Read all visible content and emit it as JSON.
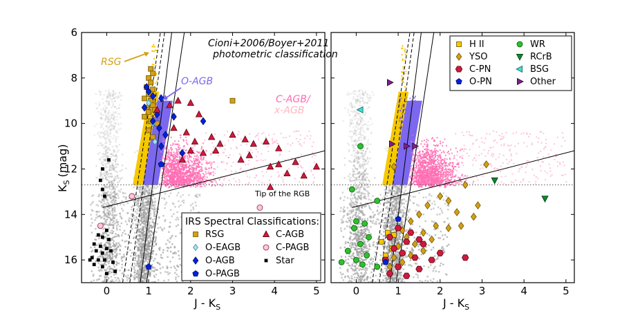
{
  "colors": {
    "rsg_band": "#f5c800",
    "oagb_band": "#7b68ee",
    "cagb_cloud": "#ff6eb4",
    "xagb_cloud": "#ffb6cf",
    "rsg_label": "#d4a017",
    "oagb_label": "#7b68ee",
    "cagb_label": "#ff69b4",
    "xagb_label": "#ffb6c1",
    "background_cloud": "#9a9a9a"
  },
  "chart_data": [
    {
      "type": "scatter",
      "panel": "left",
      "xlabel": "J - K",
      "xlabel_sub": "S",
      "ylabel": "K",
      "ylabel_sub": "S",
      "ylabel_unit": "(mag)",
      "xlim": [
        -0.6,
        5.2
      ],
      "ylim": [
        17,
        6
      ],
      "xticks": [
        "0",
        "1",
        "2",
        "3",
        "4",
        "5"
      ],
      "yticks": [
        "6",
        "8",
        "10",
        "12",
        "14",
        "16"
      ],
      "title_lines": [
        "Cioni+2006/Boyer+2011",
        "photometric classification"
      ],
      "region_labels": {
        "rsg": "RSG",
        "oagb": "O-AGB",
        "cagb": "C-AGB/",
        "xagb": "x-AGB"
      },
      "trgb_label": "Tip of the RGB",
      "trgb_k": 12.7,
      "legend_title": "IRS Spectral Classifications:",
      "legend": [
        {
          "key": "rsg",
          "label": "RSG"
        },
        {
          "key": "oeagb",
          "label": "O-EAGB"
        },
        {
          "key": "oagb",
          "label": "O-AGB"
        },
        {
          "key": "opagb",
          "label": "O-PAGB"
        },
        {
          "key": "cagb",
          "label": "C-AGB"
        },
        {
          "key": "cpagb",
          "label": "C-PAGB"
        },
        {
          "key": "star",
          "label": "Star"
        }
      ],
      "series": [
        {
          "key": "rsg",
          "name": "RSG",
          "points": [
            [
              1.05,
              7.6
            ],
            [
              1.1,
              7.8
            ],
            [
              1.0,
              8.0
            ],
            [
              1.05,
              8.2
            ],
            [
              0.95,
              8.4
            ],
            [
              1.1,
              8.5
            ],
            [
              1.0,
              8.7
            ],
            [
              0.9,
              8.9
            ],
            [
              1.05,
              9.0
            ],
            [
              1.1,
              9.2
            ],
            [
              0.95,
              9.3
            ],
            [
              1.0,
              9.5
            ],
            [
              1.15,
              9.4
            ],
            [
              0.9,
              9.7
            ],
            [
              1.05,
              9.9
            ],
            [
              1.2,
              10.0
            ],
            [
              1.0,
              10.3
            ],
            [
              1.1,
              10.6
            ],
            [
              3.0,
              9.0
            ]
          ]
        },
        {
          "key": "oeagb",
          "name": "O-EAGB",
          "points": [
            [
              1.0,
              9.1
            ],
            [
              1.1,
              10.0
            ],
            [
              1.15,
              10.8
            ]
          ]
        },
        {
          "key": "oagb",
          "name": "O-AGB",
          "points": [
            [
              0.95,
              8.4
            ],
            [
              1.0,
              8.6
            ],
            [
              1.1,
              8.8
            ],
            [
              1.3,
              8.9
            ],
            [
              0.9,
              9.3
            ],
            [
              1.2,
              9.6
            ],
            [
              1.1,
              9.9
            ],
            [
              1.25,
              10.2
            ],
            [
              1.4,
              10.5
            ],
            [
              1.6,
              9.7
            ],
            [
              1.3,
              11.0
            ],
            [
              1.8,
              11.3
            ],
            [
              2.3,
              9.9
            ]
          ]
        },
        {
          "key": "opagb",
          "name": "O-PAGB",
          "points": [
            [
              1.3,
              11.8
            ],
            [
              1.0,
              16.3
            ]
          ]
        },
        {
          "key": "cagb",
          "name": "C-AGB",
          "points": [
            [
              1.2,
              9.4
            ],
            [
              1.5,
              9.2
            ],
            [
              1.7,
              9.0
            ],
            [
              2.0,
              9.1
            ],
            [
              2.2,
              9.6
            ],
            [
              1.6,
              10.2
            ],
            [
              1.9,
              10.4
            ],
            [
              2.1,
              10.8
            ],
            [
              2.5,
              10.6
            ],
            [
              2.7,
              10.9
            ],
            [
              3.0,
              10.5
            ],
            [
              3.3,
              10.7
            ],
            [
              3.5,
              10.9
            ],
            [
              3.8,
              10.8
            ],
            [
              4.1,
              11.1
            ],
            [
              2.3,
              11.3
            ],
            [
              2.6,
              11.2
            ],
            [
              3.2,
              11.6
            ],
            [
              3.4,
              11.4
            ],
            [
              3.9,
              11.9
            ],
            [
              4.1,
              11.8
            ],
            [
              4.5,
              11.7
            ],
            [
              5.0,
              11.9
            ],
            [
              4.3,
              12.2
            ],
            [
              4.7,
              12.3
            ],
            [
              1.8,
              11.6
            ],
            [
              2.0,
              11.2
            ],
            [
              3.9,
              12.8
            ]
          ]
        },
        {
          "key": "cpagb",
          "name": "C-PAGB",
          "points": [
            [
              0.6,
              13.2
            ],
            [
              -0.15,
              14.5
            ],
            [
              3.65,
              13.7
            ]
          ]
        },
        {
          "key": "star",
          "name": "Star",
          "points": [
            [
              0.05,
              11.6
            ],
            [
              -0.1,
              12.0
            ],
            [
              -0.15,
              12.5
            ],
            [
              -0.1,
              12.9
            ],
            [
              -0.05,
              13.2
            ],
            [
              0.0,
              14.7
            ],
            [
              -0.2,
              14.9
            ],
            [
              -0.1,
              15.0
            ],
            [
              0.05,
              15.1
            ],
            [
              -0.3,
              15.3
            ],
            [
              -0.15,
              15.4
            ],
            [
              0.0,
              15.5
            ],
            [
              -0.25,
              15.6
            ],
            [
              -0.1,
              15.7
            ],
            [
              0.1,
              15.6
            ],
            [
              -0.35,
              15.9
            ],
            [
              -0.2,
              16.0
            ],
            [
              -0.05,
              16.0
            ],
            [
              0.15,
              16.1
            ],
            [
              -0.3,
              16.2
            ],
            [
              -0.1,
              16.3
            ],
            [
              0.2,
              16.5
            ],
            [
              0.0,
              16.6
            ],
            [
              -0.4,
              16.0
            ]
          ]
        }
      ]
    },
    {
      "type": "scatter",
      "panel": "right",
      "xlabel": "J - K",
      "xlabel_sub": "S",
      "xlim": [
        -0.6,
        5.2
      ],
      "ylim": [
        17,
        6
      ],
      "xticks": [
        "0",
        "1",
        "2",
        "3",
        "4",
        "5"
      ],
      "legend": [
        {
          "key": "hii",
          "label": "H II"
        },
        {
          "key": "yso",
          "label": "YSO"
        },
        {
          "key": "cpn",
          "label": "C-PN"
        },
        {
          "key": "opn",
          "label": "O-PN"
        },
        {
          "key": "wr",
          "label": "WR"
        },
        {
          "key": "rcrb",
          "label": "RCrB"
        },
        {
          "key": "bsg",
          "label": "BSG"
        },
        {
          "key": "other",
          "label": "Other"
        }
      ],
      "series": [
        {
          "key": "hii",
          "name": "H II",
          "points": [
            [
              0.75,
              14.8
            ],
            [
              0.6,
              15.2
            ],
            [
              0.85,
              15.5
            ],
            [
              0.7,
              15.8
            ],
            [
              0.9,
              14.9
            ]
          ]
        },
        {
          "key": "yso",
          "name": "YSO",
          "points": [
            [
              0.9,
              11.9
            ],
            [
              3.1,
              11.8
            ],
            [
              2.6,
              12.7
            ],
            [
              2.2,
              13.4
            ],
            [
              1.7,
              13.6
            ],
            [
              2.0,
              13.2
            ],
            [
              2.4,
              13.9
            ],
            [
              2.8,
              14.1
            ],
            [
              1.5,
              14.0
            ],
            [
              1.3,
              14.3
            ],
            [
              1.9,
              14.5
            ],
            [
              2.2,
              14.6
            ],
            [
              1.1,
              14.7
            ],
            [
              1.6,
              14.8
            ],
            [
              1.2,
              15.0
            ],
            [
              1.8,
              15.1
            ],
            [
              1.4,
              15.3
            ],
            [
              1.0,
              15.4
            ],
            [
              1.6,
              15.6
            ],
            [
              1.3,
              15.8
            ],
            [
              0.9,
              15.9
            ],
            [
              1.1,
              16.1
            ],
            [
              0.8,
              16.3
            ],
            [
              2.5,
              14.5
            ],
            [
              2.9,
              13.6
            ]
          ]
        },
        {
          "key": "cpn",
          "name": "C-PN",
          "points": [
            [
              1.0,
              14.6
            ],
            [
              1.3,
              14.8
            ],
            [
              0.8,
              15.0
            ],
            [
              1.2,
              15.2
            ],
            [
              1.5,
              15.1
            ],
            [
              0.9,
              15.5
            ],
            [
              1.1,
              15.7
            ],
            [
              1.4,
              15.9
            ],
            [
              0.7,
              16.0
            ],
            [
              1.8,
              16.0
            ],
            [
              1.0,
              16.3
            ],
            [
              1.5,
              16.4
            ],
            [
              0.8,
              16.6
            ],
            [
              1.2,
              16.7
            ],
            [
              2.0,
              15.7
            ],
            [
              2.6,
              15.9
            ],
            [
              1.6,
              15.3
            ]
          ]
        },
        {
          "key": "opn",
          "name": "O-PN",
          "points": [
            [
              1.0,
              14.2
            ],
            [
              0.7,
              16.1
            ]
          ]
        },
        {
          "key": "wr",
          "name": "WR",
          "points": [
            [
              0.1,
              11.0
            ],
            [
              -0.1,
              12.9
            ],
            [
              0.5,
              13.4
            ],
            [
              0.0,
              14.3
            ],
            [
              0.2,
              14.4
            ],
            [
              -0.05,
              14.6
            ],
            [
              0.3,
              15.0
            ],
            [
              0.1,
              15.3
            ],
            [
              -0.2,
              15.6
            ],
            [
              0.25,
              15.8
            ],
            [
              0.0,
              16.0
            ],
            [
              0.15,
              16.2
            ],
            [
              -0.35,
              16.1
            ],
            [
              0.5,
              16.3
            ]
          ]
        },
        {
          "key": "rcrb",
          "name": "RCrB",
          "points": [
            [
              3.3,
              12.5
            ],
            [
              4.5,
              13.3
            ]
          ]
        },
        {
          "key": "bsg",
          "name": "BSG",
          "points": [
            [
              0.1,
              9.4
            ]
          ]
        },
        {
          "key": "other",
          "name": "Other",
          "points": [
            [
              0.8,
              8.2
            ],
            [
              0.85,
              10.9
            ],
            [
              1.2,
              11.0
            ],
            [
              1.4,
              11.0
            ]
          ]
        }
      ]
    }
  ]
}
